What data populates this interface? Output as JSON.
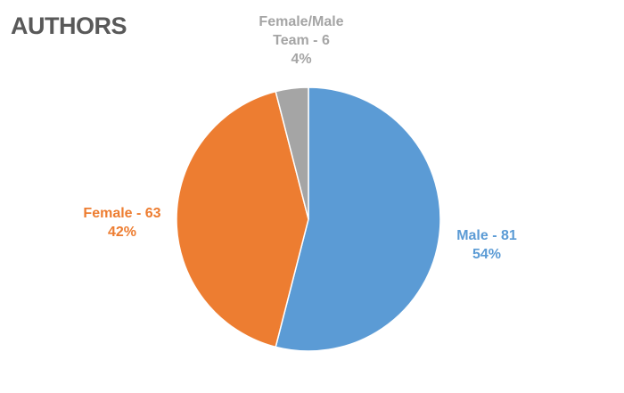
{
  "chart_data": {
    "type": "pie",
    "title": "AUTHORS",
    "slices": [
      {
        "label": "Male - 81",
        "percent_label": "54%",
        "value": 81,
        "color": "#5B9BD5"
      },
      {
        "label": "Female - 63",
        "percent_label": "42%",
        "value": 63,
        "color": "#ED7D31"
      },
      {
        "label_lines": [
          "Female/Male",
          "Team - 6"
        ],
        "percent_label": "4%",
        "value": 6,
        "color": "#A5A5A5"
      }
    ],
    "legend": "none"
  }
}
